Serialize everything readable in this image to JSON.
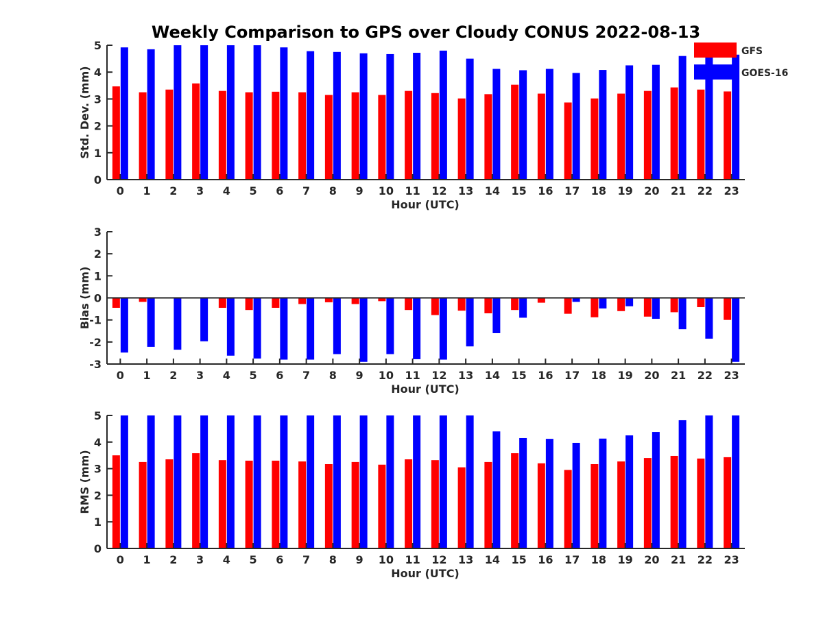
{
  "title": "Weekly Comparison to GPS over Cloudy CONUS 2022-08-13",
  "colors": {
    "GFS": "#ff0000",
    "GOES-16": "#0000ff",
    "axis": "#262626"
  },
  "legend": {
    "position": "top-right",
    "items": [
      "GFS",
      "GOES-16"
    ]
  },
  "chart_data": [
    {
      "type": "bar",
      "xlabel": "Hour (UTC)",
      "ylabel": "Std. Dev. (mm)",
      "ylim": [
        0,
        5
      ],
      "yticks": [
        0,
        1,
        2,
        3,
        4,
        5
      ],
      "categories": [
        "0",
        "1",
        "2",
        "3",
        "4",
        "5",
        "6",
        "7",
        "8",
        "9",
        "10",
        "11",
        "12",
        "13",
        "14",
        "15",
        "16",
        "17",
        "18",
        "19",
        "20",
        "21",
        "22",
        "23"
      ],
      "series": [
        {
          "name": "GFS",
          "values": [
            3.47,
            3.25,
            3.35,
            3.58,
            3.3,
            3.25,
            3.27,
            3.25,
            3.15,
            3.25,
            3.15,
            3.3,
            3.22,
            3.02,
            3.18,
            3.53,
            3.2,
            2.87,
            3.02,
            3.2,
            3.3,
            3.43,
            3.35,
            3.28
          ]
        },
        {
          "name": "GOES-16",
          "values": [
            4.92,
            4.85,
            5.0,
            5.0,
            5.0,
            5.0,
            4.92,
            4.78,
            4.75,
            4.7,
            4.67,
            4.72,
            4.8,
            4.5,
            4.12,
            4.07,
            4.12,
            3.97,
            4.08,
            4.25,
            4.27,
            4.6,
            4.7,
            4.65
          ]
        }
      ]
    },
    {
      "type": "bar",
      "xlabel": "Hour (UTC)",
      "ylabel": "Bias (mm)",
      "ylim": [
        -3,
        3
      ],
      "yticks": [
        -3,
        -2,
        -1,
        0,
        1,
        2,
        3
      ],
      "categories": [
        "0",
        "1",
        "2",
        "3",
        "4",
        "5",
        "6",
        "7",
        "8",
        "9",
        "10",
        "11",
        "12",
        "13",
        "14",
        "15",
        "16",
        "17",
        "18",
        "19",
        "20",
        "21",
        "22",
        "23"
      ],
      "series": [
        {
          "name": "GFS",
          "values": [
            -0.45,
            -0.18,
            0,
            0,
            -0.45,
            -0.55,
            -0.45,
            -0.28,
            -0.2,
            -0.28,
            -0.15,
            -0.55,
            -0.78,
            -0.58,
            -0.7,
            -0.55,
            -0.22,
            -0.72,
            -0.88,
            -0.6,
            -0.85,
            -0.65,
            -0.42,
            -1.0
          ]
        },
        {
          "name": "GOES-16",
          "values": [
            -2.48,
            -2.22,
            -2.35,
            -1.97,
            -2.62,
            -2.75,
            -2.8,
            -2.8,
            -2.55,
            -2.9,
            -2.55,
            -2.78,
            -2.8,
            -2.2,
            -1.6,
            -0.9,
            0,
            -0.18,
            -0.48,
            -0.38,
            -0.95,
            -1.42,
            -1.85,
            -2.9
          ]
        }
      ]
    },
    {
      "type": "bar",
      "xlabel": "Hour (UTC)",
      "ylabel": "RMS (mm)",
      "ylim": [
        0,
        5
      ],
      "yticks": [
        0,
        1,
        2,
        3,
        4,
        5
      ],
      "categories": [
        "0",
        "1",
        "2",
        "3",
        "4",
        "5",
        "6",
        "7",
        "8",
        "9",
        "10",
        "11",
        "12",
        "13",
        "14",
        "15",
        "16",
        "17",
        "18",
        "19",
        "20",
        "21",
        "22",
        "23"
      ],
      "series": [
        {
          "name": "GFS",
          "values": [
            3.5,
            3.25,
            3.35,
            3.58,
            3.32,
            3.3,
            3.3,
            3.27,
            3.17,
            3.25,
            3.15,
            3.35,
            3.32,
            3.05,
            3.25,
            3.58,
            3.2,
            2.95,
            3.17,
            3.27,
            3.4,
            3.48,
            3.38,
            3.43
          ]
        },
        {
          "name": "GOES-16",
          "values": [
            5.0,
            5.0,
            5.0,
            5.0,
            5.0,
            5.0,
            5.0,
            5.0,
            5.0,
            5.0,
            5.0,
            5.0,
            5.0,
            5.0,
            4.4,
            4.15,
            4.12,
            3.97,
            4.13,
            4.25,
            4.38,
            4.82,
            5.0,
            5.0
          ]
        }
      ]
    }
  ]
}
